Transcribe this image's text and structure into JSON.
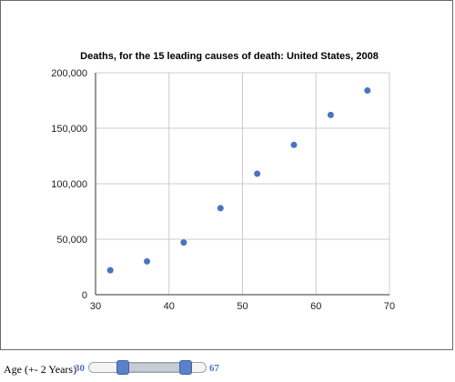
{
  "chart_data": {
    "type": "scatter",
    "title": "Deaths, for the 15 leading causes of death: United States, 2008",
    "xlabel": "",
    "ylabel": "",
    "xlim": [
      30,
      70
    ],
    "ylim": [
      0,
      200000
    ],
    "x_ticks": [
      30,
      40,
      50,
      60,
      70
    ],
    "y_ticks": [
      0,
      50000,
      100000,
      150000,
      200000
    ],
    "y_tick_labels": [
      "0",
      "50,000",
      "100,000",
      "150,000",
      "200,000"
    ],
    "grid": true,
    "legend": "none",
    "series": [
      {
        "color": "#4a73c0",
        "points": [
          {
            "x": 32,
            "y": 22000
          },
          {
            "x": 37,
            "y": 30000
          },
          {
            "x": 42,
            "y": 47000
          },
          {
            "x": 47,
            "y": 78000
          },
          {
            "x": 52,
            "y": 109000
          },
          {
            "x": 57,
            "y": 135000
          },
          {
            "x": 62,
            "y": 162000
          },
          {
            "x": 67,
            "y": 184000
          }
        ]
      }
    ]
  },
  "controls": {
    "label": "Age (+- 2 Years)",
    "range_min": 30,
    "range_max": 67,
    "accent_color": "#4a73c0"
  }
}
